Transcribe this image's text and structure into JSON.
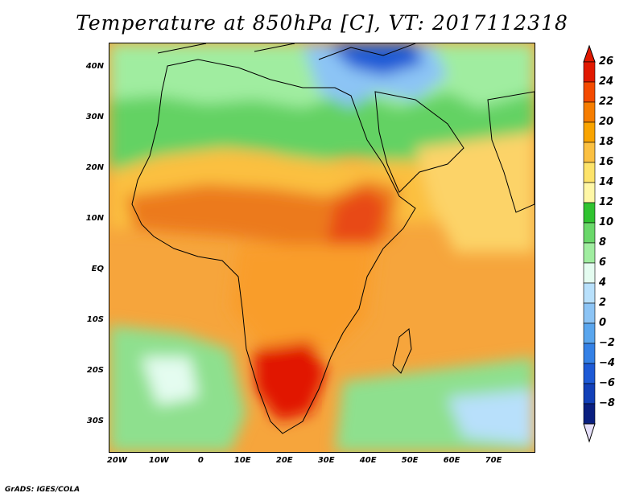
{
  "title": "Temperature at 850hPa [C], VT: 2017112318",
  "credit": "GrADS: IGES/COLA",
  "map": {
    "lon_range": [
      -22,
      80
    ],
    "lat_range": [
      -36,
      45
    ],
    "lat_ticks": [
      {
        "value": 40,
        "label": "40N"
      },
      {
        "value": 30,
        "label": "30N"
      },
      {
        "value": 20,
        "label": "20N"
      },
      {
        "value": 10,
        "label": "10N"
      },
      {
        "value": 0,
        "label": "EQ"
      },
      {
        "value": -10,
        "label": "10S"
      },
      {
        "value": -20,
        "label": "20S"
      },
      {
        "value": -30,
        "label": "30S"
      }
    ],
    "lon_ticks": [
      {
        "value": -20,
        "label": "20W"
      },
      {
        "value": -10,
        "label": "10W"
      },
      {
        "value": 0,
        "label": "0"
      },
      {
        "value": 10,
        "label": "10E"
      },
      {
        "value": 20,
        "label": "20E"
      },
      {
        "value": 30,
        "label": "30E"
      },
      {
        "value": 40,
        "label": "40E"
      },
      {
        "value": 50,
        "label": "50E"
      },
      {
        "value": 60,
        "label": "60E"
      },
      {
        "value": 70,
        "label": "70E"
      }
    ]
  },
  "colorbar": {
    "levels": [
      26,
      24,
      22,
      20,
      18,
      16,
      14,
      12,
      10,
      8,
      6,
      4,
      2,
      0,
      -2,
      -4,
      -6,
      -8
    ],
    "level_labels": [
      "26",
      "24",
      "22",
      "20",
      "18",
      "16",
      "14",
      "12",
      "10",
      "8",
      "6",
      "4",
      "2",
      "0",
      "−2",
      "−4",
      "−6",
      "−8"
    ],
    "colors": [
      "#e11800",
      "#f44a00",
      "#f67d00",
      "#f9a400",
      "#fbc041",
      "#fde36a",
      "#fff7a6",
      "#30c330",
      "#6ad86a",
      "#a0eda0",
      "#e4fcf0",
      "#b8e0fb",
      "#8cc4f5",
      "#5aa6ee",
      "#3481e6",
      "#1d5ad6",
      "#1240b8",
      "#0a1f80"
    ]
  },
  "fields": {
    "land": [
      "#ec7a1c",
      "#f99d2c",
      "#e84a18"
    ],
    "ocean_warm": "#f6a53c",
    "ocean_cool": "#fcd368",
    "cool_north": "#64d264",
    "cold_sea": "#2c6ee0",
    "south_ocean": "#8ee08e"
  }
}
